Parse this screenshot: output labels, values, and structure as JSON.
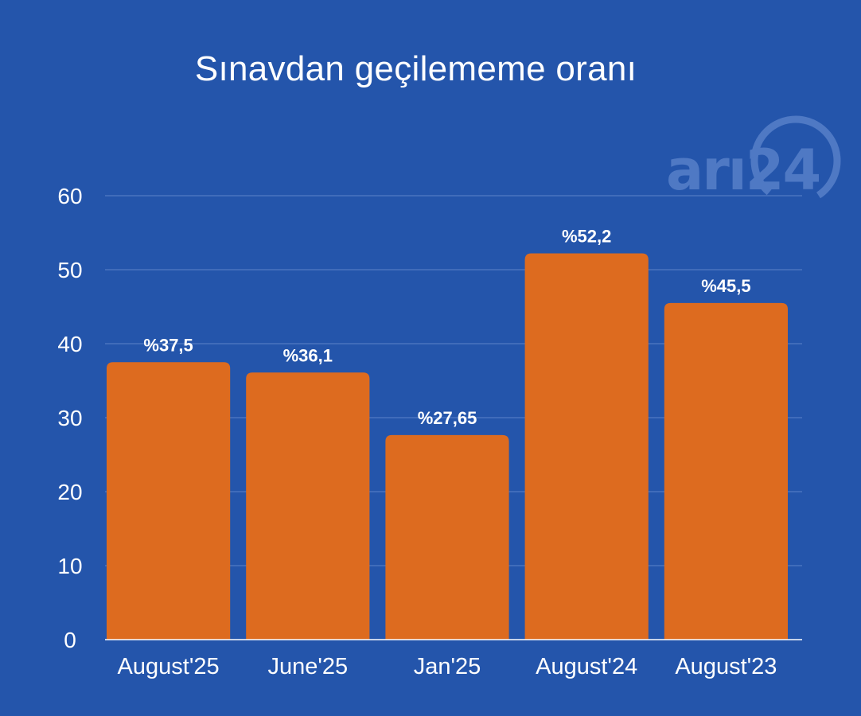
{
  "chart_data": {
    "type": "bar",
    "title": "Sınavdan geçilememe oranı",
    "categories": [
      "August'25",
      "June'25",
      "Jan'25",
      "August'24",
      "August'23"
    ],
    "values": [
      37.5,
      36.1,
      27.65,
      52.2,
      45.5
    ],
    "data_labels": [
      "%37,5",
      "%36,1",
      "%27,65",
      "%52,2",
      "%45,5"
    ],
    "yticks": [
      "0",
      "10",
      "20",
      "30",
      "40",
      "50",
      "60"
    ],
    "ylim": [
      0,
      60
    ],
    "xlabel": "",
    "ylabel": "",
    "grid": true,
    "legend": "none"
  },
  "logo": {
    "text": "arı24"
  },
  "colors": {
    "background": "#2455ab",
    "bar": "#dd6b1f",
    "grid": "#5d84c9",
    "axis": "#ffffff",
    "text": "#ffffff",
    "logo": "#4f79c4"
  }
}
